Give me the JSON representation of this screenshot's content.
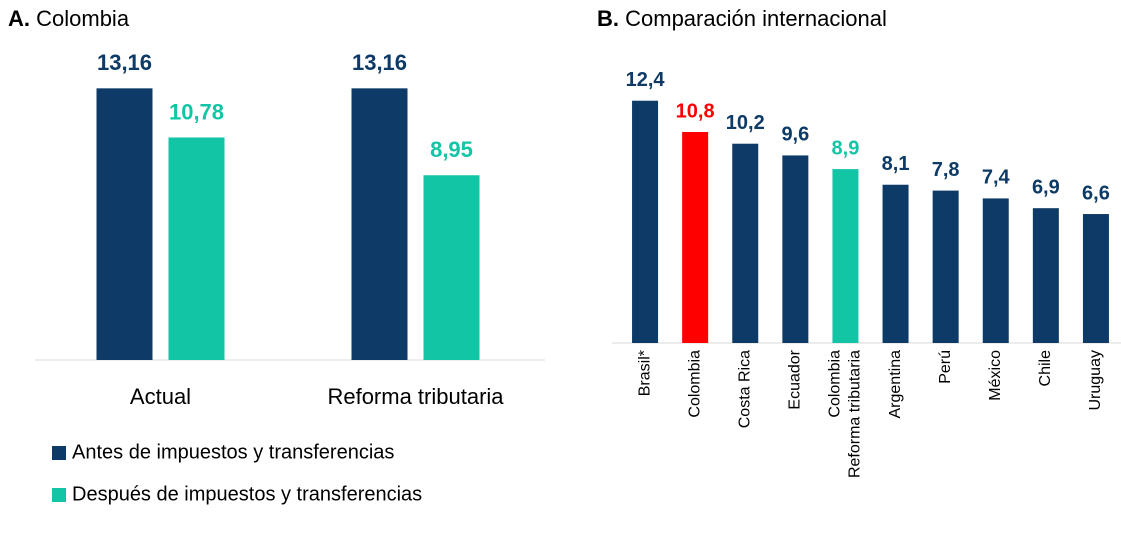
{
  "chart_data": [
    {
      "type": "bar",
      "panel": "A.",
      "title": "Colombia",
      "categories": [
        "Actual",
        "Reforma tributaria"
      ],
      "series": [
        {
          "name": "Antes de impuestos y transferencias",
          "color": "#0d3a66",
          "values": [
            13.16,
            13.16
          ],
          "value_labels": [
            "13,16",
            "13,16"
          ]
        },
        {
          "name": "Después de impuestos y transferencias",
          "color": "#12c5a5",
          "values": [
            10.78,
            8.95
          ],
          "value_labels": [
            "10,78",
            "8,95"
          ]
        }
      ],
      "ylim": [
        0,
        14
      ]
    },
    {
      "type": "bar",
      "panel": "B.",
      "title": "Comparación internacional",
      "categories": [
        "Brasil*",
        "Colombia",
        "Costa Rica",
        "Ecuador",
        [
          "Colombia",
          "Reforma tributaria"
        ],
        "Argentina",
        "Perú",
        "México",
        "Chile",
        "Uruguay"
      ],
      "values": [
        12.4,
        10.8,
        10.2,
        9.6,
        8.9,
        8.1,
        7.8,
        7.4,
        6.9,
        6.6
      ],
      "value_labels": [
        "12,4",
        "10,8",
        "10,2",
        "9,6",
        "8,9",
        "8,1",
        "7,8",
        "7,4",
        "6,9",
        "6,6"
      ],
      "colors": [
        "#0d3a66",
        "#ff0000",
        "#0d3a66",
        "#0d3a66",
        "#12c5a5",
        "#0d3a66",
        "#0d3a66",
        "#0d3a66",
        "#0d3a66",
        "#0d3a66"
      ],
      "ylim": [
        0,
        13
      ]
    }
  ]
}
